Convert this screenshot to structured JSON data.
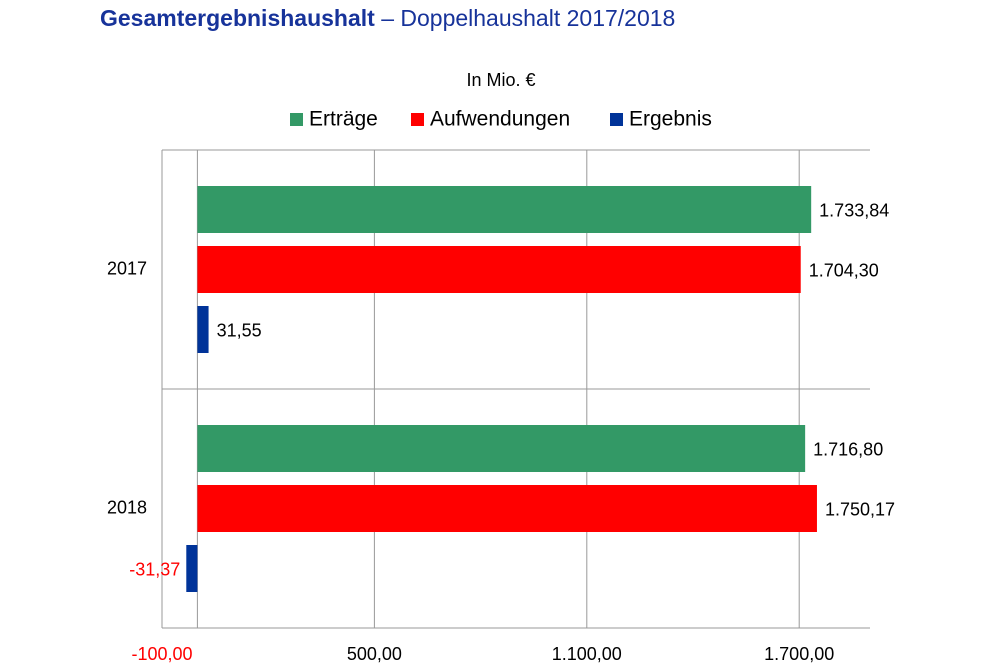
{
  "chart_data": {
    "type": "hbar",
    "title": "Gesamtergebnishaushalt",
    "title_suffix": "– Doppelhaushalt 2017/2018",
    "subtitle": "In Mio. €",
    "categories": [
      "2017",
      "2018"
    ],
    "series": [
      {
        "name": "Erträge",
        "color": "#339966",
        "values": [
          1733.84,
          1716.8
        ],
        "value_labels": [
          "1.733,84",
          "1.716,80"
        ]
      },
      {
        "name": "Aufwendungen",
        "color": "#ff0000",
        "values": [
          1704.3,
          1750.17
        ],
        "value_labels": [
          "1.704,30",
          "1.750,17"
        ]
      },
      {
        "name": "Ergebnis",
        "color": "#003399",
        "values": [
          31.55,
          -31.37
        ],
        "value_labels": [
          "31,55",
          "-31,37"
        ]
      }
    ],
    "xlim": [
      -100,
      1900
    ],
    "xticks": [
      {
        "value": -100,
        "label": "-100,00"
      },
      {
        "value": 500,
        "label": "500,00"
      },
      {
        "value": 1100,
        "label": "1.100,00"
      },
      {
        "value": 1700,
        "label": "1.700,00"
      }
    ],
    "grid": true,
    "negative_color": "#ff0000",
    "legend": "top"
  }
}
